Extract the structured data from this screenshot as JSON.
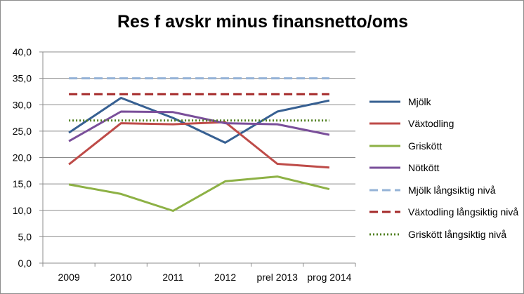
{
  "chart_data": {
    "type": "line",
    "title": "Res f avskr minus finansnetto/oms",
    "xlabel": "",
    "ylabel": "",
    "categories": [
      "2009",
      "2010",
      "2011",
      "2012",
      "prel 2013",
      "prog 2014"
    ],
    "ylim": [
      0,
      40
    ],
    "yticks": [
      "0,0",
      "5,0",
      "10,0",
      "15,0",
      "20,0",
      "25,0",
      "30,0",
      "35,0",
      "40,0"
    ],
    "grid": "horizontal",
    "legend_position": "right",
    "series": [
      {
        "name": "Mjölk",
        "values": [
          24.7,
          31.3,
          27.5,
          22.8,
          28.7,
          30.8
        ],
        "color": "#376092",
        "style": "solid"
      },
      {
        "name": "Växtodling",
        "values": [
          18.7,
          26.5,
          26.3,
          26.7,
          18.8,
          18.1
        ],
        "color": "#be4b48",
        "style": "solid"
      },
      {
        "name": "Griskött",
        "values": [
          14.9,
          13.1,
          9.9,
          15.5,
          16.4,
          14.0
        ],
        "color": "#8db145",
        "style": "solid"
      },
      {
        "name": "Nötkött",
        "values": [
          23.1,
          28.7,
          28.6,
          26.5,
          26.3,
          24.3
        ],
        "color": "#7a4f9a",
        "style": "solid"
      },
      {
        "name": "Mjölk långsiktig nivå",
        "values": [
          35.0,
          35.0,
          35.0,
          35.0,
          35.0,
          35.0
        ],
        "color": "#95b3d7",
        "style": "dash"
      },
      {
        "name": "Växtodling långsiktig nivå",
        "values": [
          32.0,
          32.0,
          32.0,
          32.0,
          32.0,
          32.0
        ],
        "color": "#a52a2a",
        "style": "dash"
      },
      {
        "name": "Griskött långsiktig nivå",
        "values": [
          27.0,
          27.0,
          27.0,
          27.0,
          27.0,
          27.0
        ],
        "color": "#4f7f1f",
        "style": "dot"
      }
    ]
  }
}
